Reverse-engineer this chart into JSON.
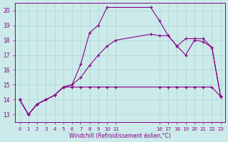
{
  "xlabel": "Windchill (Refroidissement éolien,°C)",
  "bg_color": "#cceaea",
  "line_color": "#880088",
  "grid_color": "#aad4d4",
  "ylim": [
    12.5,
    20.5
  ],
  "xlim": [
    -0.5,
    23.5
  ],
  "yticks": [
    13,
    14,
    15,
    16,
    17,
    18,
    19,
    20
  ],
  "xtick_positions": [
    0,
    1,
    2,
    3,
    4,
    5,
    6,
    7,
    8,
    9,
    10,
    11,
    16,
    17,
    18,
    19,
    20,
    21,
    22,
    23
  ],
  "xtick_labels": [
    "0",
    "1",
    "2",
    "3",
    "4",
    "5",
    "6",
    "7",
    "8",
    "9",
    "10",
    "11",
    "16",
    "17",
    "18",
    "19",
    "20",
    "21",
    "22",
    "23"
  ],
  "line1_x": [
    0,
    1,
    2,
    3,
    4,
    5,
    6,
    7,
    8,
    9,
    10,
    11,
    16,
    17,
    18,
    19,
    20,
    21,
    22,
    23
  ],
  "line1_y": [
    14.0,
    13.0,
    13.7,
    14.0,
    14.3,
    14.85,
    14.85,
    14.85,
    14.85,
    14.85,
    14.85,
    14.85,
    14.85,
    14.85,
    14.85,
    14.85,
    14.85,
    14.85,
    14.85,
    14.2
  ],
  "line2_x": [
    0,
    1,
    2,
    3,
    4,
    5,
    6,
    7,
    8,
    9,
    10,
    15,
    16,
    17,
    18,
    19,
    20,
    21,
    22,
    23
  ],
  "line2_y": [
    14.0,
    13.0,
    13.7,
    14.0,
    14.3,
    14.85,
    15.0,
    16.4,
    18.5,
    19.0,
    20.2,
    20.2,
    19.3,
    18.3,
    17.6,
    17.0,
    18.0,
    17.9,
    17.5,
    14.2
  ],
  "line3_x": [
    0,
    1,
    2,
    3,
    4,
    5,
    6,
    7,
    8,
    9,
    10,
    11,
    15,
    16,
    17,
    18,
    19,
    20,
    21,
    22,
    23
  ],
  "line3_y": [
    14.0,
    13.0,
    13.7,
    14.0,
    14.3,
    14.85,
    15.0,
    15.5,
    16.3,
    17.0,
    17.6,
    18.0,
    18.4,
    18.3,
    18.3,
    17.6,
    18.1,
    18.1,
    18.1,
    17.5,
    14.2
  ]
}
